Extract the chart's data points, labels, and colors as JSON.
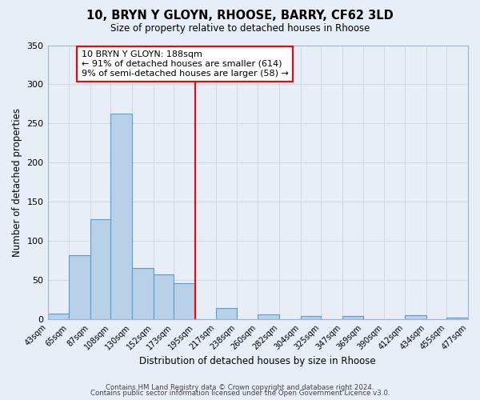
{
  "title": "10, BRYN Y GLOYN, RHOOSE, BARRY, CF62 3LD",
  "subtitle": "Size of property relative to detached houses in Rhoose",
  "xlabel": "Distribution of detached houses by size in Rhoose",
  "ylabel": "Number of detached properties",
  "bin_labels": [
    "43sqm",
    "65sqm",
    "87sqm",
    "108sqm",
    "130sqm",
    "152sqm",
    "173sqm",
    "195sqm",
    "217sqm",
    "238sqm",
    "260sqm",
    "282sqm",
    "304sqm",
    "325sqm",
    "347sqm",
    "369sqm",
    "390sqm",
    "412sqm",
    "434sqm",
    "455sqm",
    "477sqm"
  ],
  "bar_heights": [
    7,
    82,
    128,
    263,
    66,
    57,
    46,
    0,
    14,
    0,
    6,
    0,
    4,
    0,
    4,
    0,
    0,
    5,
    0,
    2
  ],
  "bin_edges": [
    43,
    65,
    87,
    108,
    130,
    152,
    173,
    195,
    217,
    238,
    260,
    282,
    304,
    325,
    347,
    369,
    390,
    412,
    434,
    455,
    477
  ],
  "bar_color": "#b8d0e8",
  "bar_edge_color": "#5b9bd5",
  "vline_x": 195,
  "vline_color": "red",
  "annotation_title": "10 BRYN Y GLOYN: 188sqm",
  "annotation_line1": "← 91% of detached houses are smaller (614)",
  "annotation_line2": "9% of semi-detached houses are larger (58) →",
  "annotation_box_color": "#ffffff",
  "annotation_box_edge_color": "red",
  "grid_color": "#d0d8e4",
  "background_color": "#e8eef8",
  "ylim": [
    0,
    350
  ],
  "yticks": [
    0,
    50,
    100,
    150,
    200,
    250,
    300,
    350
  ],
  "footer1": "Contains HM Land Registry data © Crown copyright and database right 2024.",
  "footer2": "Contains public sector information licensed under the Open Government Licence v3.0."
}
